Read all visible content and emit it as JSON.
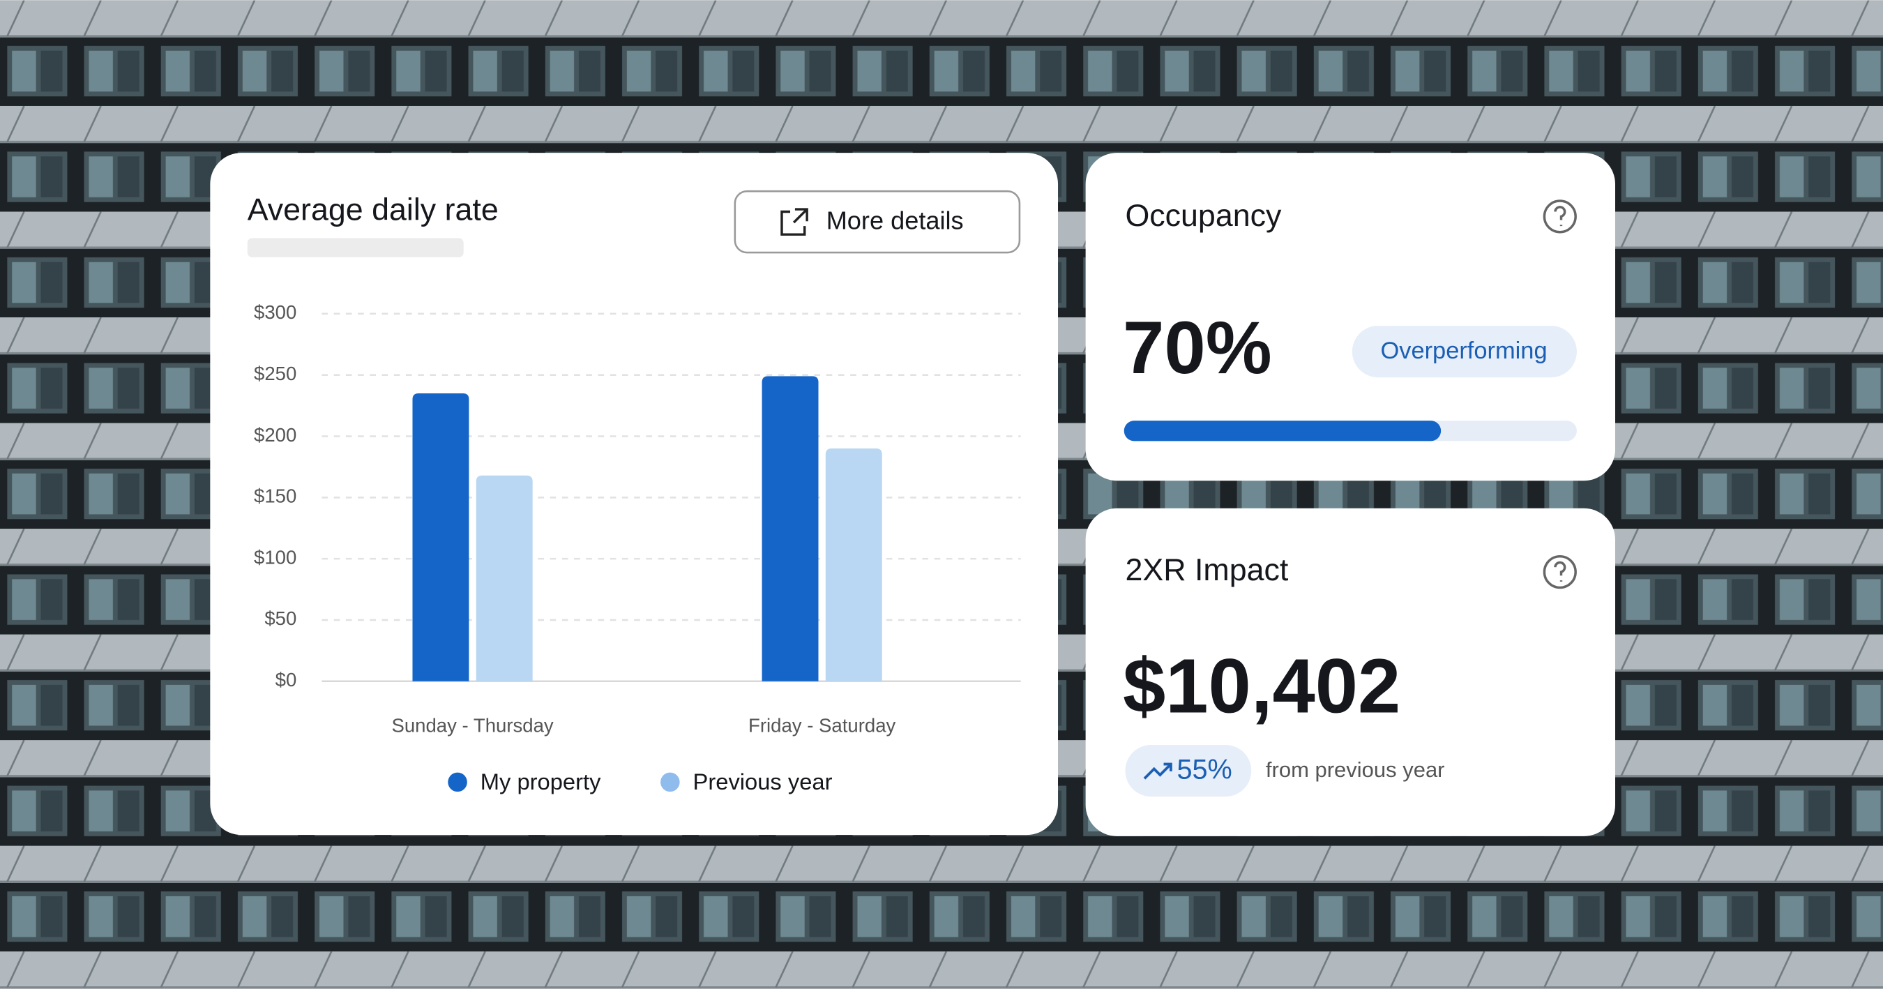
{
  "chart_data": {
    "type": "bar",
    "title": "Average daily rate",
    "categories": [
      "Sunday - Thursday",
      "Friday - Saturday"
    ],
    "series": [
      {
        "name": "My property",
        "color": "#1565c8",
        "values": [
          235,
          249
        ]
      },
      {
        "name": "Previous year",
        "color": "#b9d7f3",
        "values": [
          168,
          190
        ]
      }
    ],
    "ylim": [
      0,
      300
    ],
    "yticks": [
      {
        "value": 0,
        "label": "$0"
      },
      {
        "value": 50,
        "label": "$50"
      },
      {
        "value": 100,
        "label": "$100"
      },
      {
        "value": 150,
        "label": "$150"
      },
      {
        "value": 200,
        "label": "$200"
      },
      {
        "value": 250,
        "label": "$250"
      },
      {
        "value": 300,
        "label": "$300"
      }
    ],
    "grid": true,
    "legend": "bottom"
  },
  "details_button": "More details",
  "occupancy": {
    "title": "Occupancy",
    "value_label": "70%",
    "progress": 70,
    "badge": "Overperforming"
  },
  "impact": {
    "title": "2XR Impact",
    "value": "$10,402",
    "change": "55%",
    "change_note": "from previous year"
  }
}
